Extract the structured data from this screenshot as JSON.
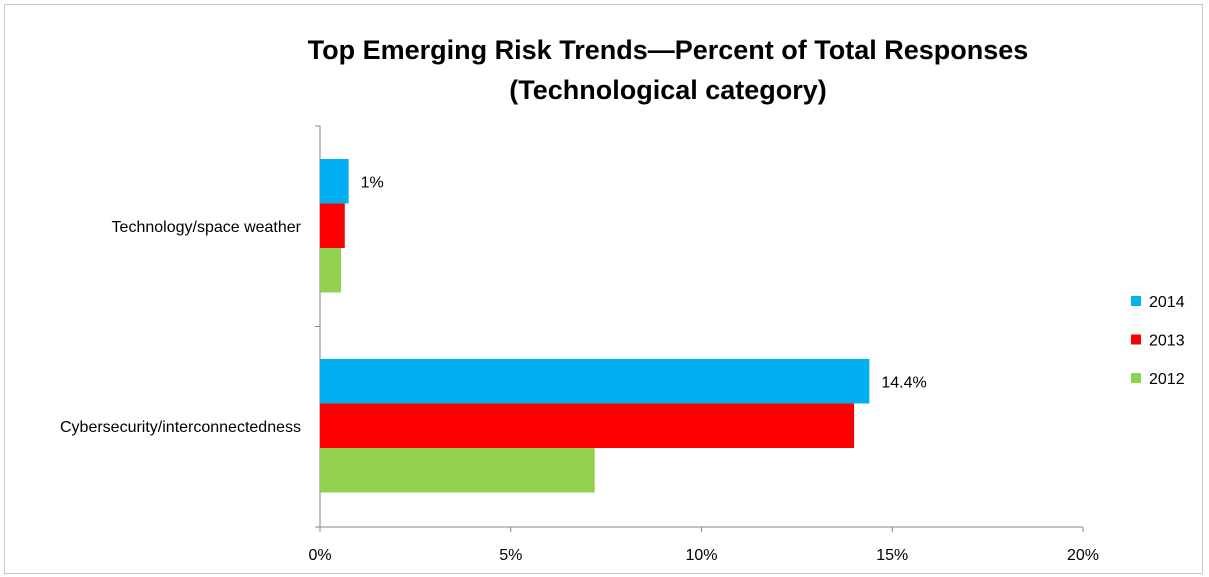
{
  "chart_data": {
    "type": "bar",
    "orientation": "horizontal",
    "title_lines": [
      "Top Emerging Risk Trends—Percent of Total Responses",
      "(Technological category)"
    ],
    "categories": [
      "Technology/space weather",
      "Cybersecurity/interconnectedness"
    ],
    "series": [
      {
        "name": "2014",
        "color": "#00b0f0",
        "values": [
          0.75,
          14.4
        ]
      },
      {
        "name": "2013",
        "color": "#ff0000",
        "values": [
          0.65,
          14.0
        ]
      },
      {
        "name": "2012",
        "color": "#92d050",
        "values": [
          0.55,
          7.2
        ]
      }
    ],
    "data_labels": [
      {
        "series": "2014",
        "category": "Technology/space weather",
        "text": "1%"
      },
      {
        "series": "2014",
        "category": "Cybersecurity/interconnectedness",
        "text": "14.4%"
      }
    ],
    "xticks": [
      0,
      5,
      10,
      15,
      20
    ],
    "xtick_labels": [
      "0%",
      "5%",
      "10%",
      "15%",
      "20%"
    ],
    "xlim": [
      0,
      20
    ],
    "legend_position": "right",
    "grid": false
  }
}
